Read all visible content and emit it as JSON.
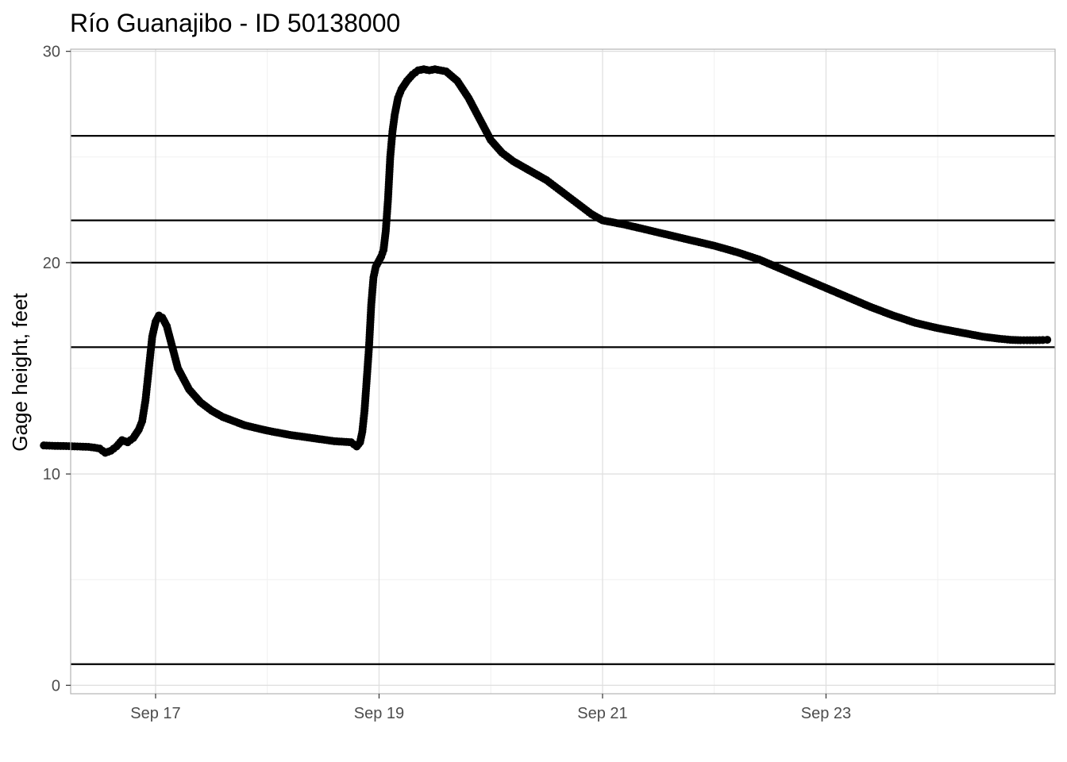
{
  "chart_data": {
    "type": "scatter",
    "title": "Río Guanajibo - ID 50138000",
    "xlabel": "",
    "ylabel": "Gage height, feet",
    "x_unit": "day of September",
    "xlim": [
      16.24,
      25.05
    ],
    "ylim": [
      -0.4,
      30.1
    ],
    "x_ticks": [
      {
        "value": 17,
        "label": "Sep 17"
      },
      {
        "value": 19,
        "label": "Sep 19"
      },
      {
        "value": 21,
        "label": "Sep 21"
      },
      {
        "value": 23,
        "label": "Sep 23"
      }
    ],
    "y_ticks": [
      {
        "value": 0,
        "label": "0"
      },
      {
        "value": 10,
        "label": "10"
      },
      {
        "value": 20,
        "label": "20"
      },
      {
        "value": 30,
        "label": "30"
      }
    ],
    "reference_lines": [
      1,
      16,
      20,
      22,
      26
    ],
    "grid": true,
    "point_color": "#000000",
    "series": [
      {
        "x": [
          16.0,
          16.05,
          16.1,
          16.2,
          16.3,
          16.4,
          16.45,
          16.5,
          16.55,
          16.6,
          16.65,
          16.7,
          16.75,
          16.8,
          16.85,
          16.88,
          16.91,
          16.93,
          16.95,
          16.97,
          17.0,
          17.03,
          17.06,
          17.1,
          17.15,
          17.2,
          17.3,
          17.4,
          17.5,
          17.6,
          17.8,
          18.0,
          18.2,
          18.4,
          18.6,
          18.75,
          18.8,
          18.83,
          18.85,
          18.87,
          18.89,
          18.91,
          18.93,
          18.95,
          18.97,
          19.0,
          19.02,
          19.04,
          19.06,
          19.08,
          19.1,
          19.12,
          19.14,
          19.17,
          19.2,
          19.25,
          19.3,
          19.35,
          19.4,
          19.45,
          19.5,
          19.6,
          19.7,
          19.8,
          19.9,
          20.0,
          20.1,
          20.2,
          20.3,
          20.4,
          20.5,
          20.6,
          20.7,
          20.8,
          20.9,
          21.0,
          21.2,
          21.4,
          21.6,
          21.8,
          22.0,
          22.2,
          22.4,
          22.6,
          22.8,
          23.0,
          23.2,
          23.4,
          23.6,
          23.8,
          24.0,
          24.2,
          24.4,
          24.55,
          24.65,
          24.74,
          24.8,
          24.88,
          24.94,
          24.98
        ],
        "y": [
          11.35,
          11.34,
          11.33,
          11.32,
          11.3,
          11.28,
          11.25,
          11.2,
          11.0,
          11.1,
          11.3,
          11.6,
          11.5,
          11.7,
          12.1,
          12.5,
          13.5,
          14.5,
          15.5,
          16.5,
          17.2,
          17.5,
          17.4,
          17.0,
          16.0,
          15.0,
          14.0,
          13.4,
          13.0,
          12.7,
          12.3,
          12.05,
          11.85,
          11.7,
          11.55,
          11.5,
          11.3,
          11.5,
          12.0,
          13.0,
          14.5,
          16.0,
          18.0,
          19.3,
          19.8,
          20.1,
          20.3,
          20.6,
          21.5,
          23.0,
          25.0,
          26.2,
          27.0,
          27.8,
          28.2,
          28.6,
          28.9,
          29.1,
          29.15,
          29.1,
          29.15,
          29.05,
          28.6,
          27.8,
          26.8,
          25.8,
          25.2,
          24.8,
          24.5,
          24.2,
          23.9,
          23.5,
          23.1,
          22.7,
          22.3,
          22.0,
          21.8,
          21.55,
          21.3,
          21.05,
          20.8,
          20.5,
          20.15,
          19.7,
          19.25,
          18.8,
          18.35,
          17.9,
          17.5,
          17.15,
          16.9,
          16.7,
          16.5,
          16.4,
          16.35,
          16.33,
          16.33,
          16.33,
          16.34,
          16.35
        ]
      }
    ]
  }
}
